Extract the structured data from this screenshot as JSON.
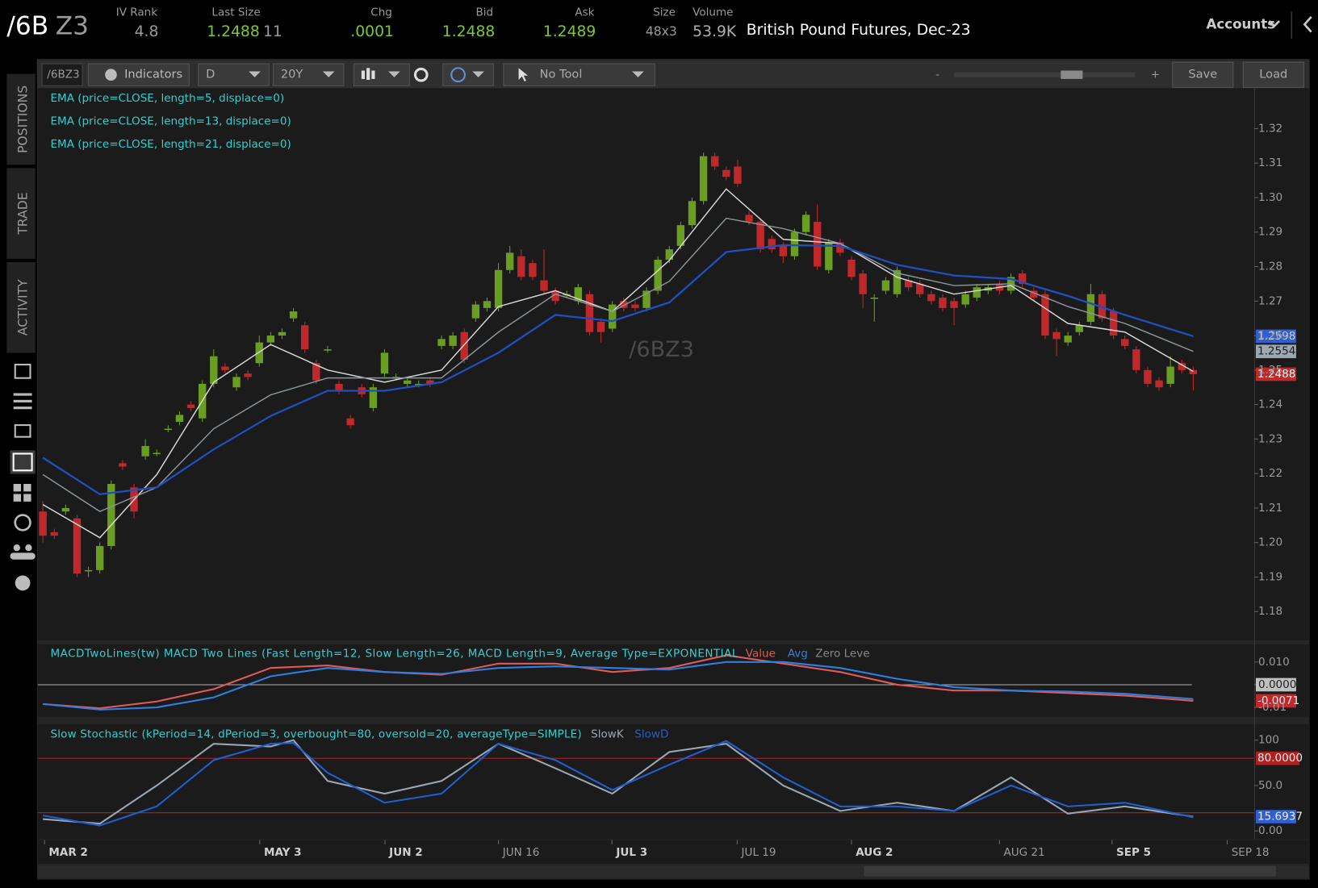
{
  "header": {
    "symbol": {
      "root": "/6B",
      "contract": "Z3"
    },
    "iv_rank": {
      "label": "IV Rank",
      "value": "4.8"
    },
    "last_size": {
      "label": "Last Size",
      "value": "1.2488",
      "size": "11"
    },
    "chg": {
      "label": "Chg",
      "value": ".0001"
    },
    "bid": {
      "label": "Bid",
      "value": "1.2488"
    },
    "ask": {
      "label": "Ask",
      "value": "1.2489"
    },
    "size": {
      "label": "Size",
      "value": "48x3"
    },
    "volume": {
      "label": "Volume",
      "value": "53.9K"
    },
    "description": "British Pound Futures, Dec-23",
    "accounts": "Accounts"
  },
  "toolbar": {
    "symbol": "/6BZ3",
    "indicators": "Indicators",
    "aggregation": "D",
    "period": "20Y",
    "tool": "No Tool",
    "zoom_out": "-",
    "zoom_in": "+",
    "save": "Save",
    "load": "Load"
  },
  "sidebar": {
    "tabs": [
      "POSITIONS",
      "TRADE",
      "ACTIVITY"
    ]
  },
  "time_axis": {
    "labels": [
      "MAR 2",
      "MAY 3",
      "JUN 2",
      "JUN 16",
      "JUL 3",
      "JUL 19",
      "AUG 2",
      "AUG 21",
      "SEP 5",
      "SEP 18"
    ]
  },
  "chart_data": [
    {
      "type": "candlestick",
      "watermark": "/6BZ3",
      "up_color": "#6a9e22",
      "down_color": "#c0292b",
      "ylim": [
        1.1717,
        1.3317
      ],
      "yticks": [
        1.32,
        1.31,
        {
          "value": 1.3,
          "label": "1.30"
        },
        1.29,
        1.28,
        1.27,
        1.26,
        1.25,
        1.24,
        1.23,
        1.22,
        1.21,
        {
          "value": 1.2,
          "label": "1.20"
        },
        1.19,
        1.18
      ],
      "open": [
        1.209,
        1.203,
        1.209,
        1.207,
        1.192,
        1.192,
        1.199,
        1.223,
        1.216,
        1.225,
        1.226,
        1.233,
        1.235,
        1.24,
        1.236,
        1.246,
        1.251,
        1.245,
        1.249,
        1.252,
        1.258,
        1.26,
        1.265,
        1.263,
        1.252,
        1.256,
        1.246,
        1.236,
        1.245,
        1.239,
        1.249,
        1.248,
        1.246,
        1.246,
        1.247,
        1.257,
        1.257,
        1.261,
        1.265,
        1.268,
        1.268,
        1.279,
        1.283,
        1.281,
        1.276,
        1.273,
        1.272,
        1.27,
        1.272,
        1.264,
        1.262,
        1.27,
        1.269,
        1.268,
        1.273,
        1.282,
        1.286,
        1.292,
        1.299,
        1.312,
        1.308,
        1.309,
        1.295,
        1.293,
        1.288,
        1.286,
        1.283,
        1.29,
        1.293,
        1.279,
        1.287,
        1.282,
        1.278,
        1.271,
        1.273,
        1.272,
        1.276,
        1.275,
        1.272,
        1.271,
        1.27,
        1.269,
        1.271,
        1.273,
        1.275,
        1.273,
        1.278,
        1.273,
        1.272,
        1.261,
        1.258,
        1.261,
        1.264,
        1.272,
        1.267,
        1.259,
        1.256,
        1.25,
        1.247,
        1.246,
        1.252,
        1.25
      ],
      "high": [
        1.212,
        1.204,
        1.211,
        1.208,
        1.193,
        1.2,
        1.218,
        1.224,
        1.217,
        1.23,
        1.227,
        1.234,
        1.238,
        1.241,
        1.247,
        1.256,
        1.252,
        1.249,
        1.25,
        1.26,
        1.261,
        1.262,
        1.268,
        1.264,
        1.253,
        1.257,
        1.247,
        1.237,
        1.246,
        1.246,
        1.256,
        1.249,
        1.248,
        1.247,
        1.248,
        1.26,
        1.261,
        1.262,
        1.27,
        1.271,
        1.281,
        1.286,
        1.285,
        1.282,
        1.285,
        1.274,
        1.273,
        1.275,
        1.273,
        1.265,
        1.27,
        1.271,
        1.27,
        1.274,
        1.283,
        1.286,
        1.293,
        1.3,
        1.313,
        1.313,
        1.309,
        1.311,
        1.296,
        1.294,
        1.289,
        1.287,
        1.291,
        1.296,
        1.298,
        1.288,
        1.288,
        1.283,
        1.279,
        1.272,
        1.277,
        1.28,
        1.277,
        1.276,
        1.273,
        1.272,
        1.271,
        1.273,
        1.275,
        1.275,
        1.276,
        1.278,
        1.279,
        1.274,
        1.273,
        1.262,
        1.261,
        1.264,
        1.275,
        1.273,
        1.268,
        1.26,
        1.257,
        1.251,
        1.248,
        1.254,
        1.253,
        1.251
      ],
      "low": [
        1.2,
        1.201,
        1.208,
        1.19,
        1.19,
        1.191,
        1.198,
        1.221,
        1.207,
        1.224,
        1.225,
        1.232,
        1.234,
        1.238,
        1.235,
        1.245,
        1.249,
        1.244,
        1.247,
        1.251,
        1.257,
        1.259,
        1.264,
        1.255,
        1.246,
        1.255,
        1.243,
        1.233,
        1.242,
        1.238,
        1.248,
        1.247,
        1.245,
        1.245,
        1.245,
        1.256,
        1.256,
        1.252,
        1.264,
        1.267,
        1.267,
        1.278,
        1.276,
        1.276,
        1.272,
        1.269,
        1.271,
        1.269,
        1.26,
        1.258,
        1.261,
        1.267,
        1.267,
        1.267,
        1.272,
        1.281,
        1.285,
        1.291,
        1.298,
        1.308,
        1.305,
        1.303,
        1.292,
        1.284,
        1.284,
        1.281,
        1.282,
        1.289,
        1.279,
        1.278,
        1.283,
        1.276,
        1.268,
        1.264,
        1.272,
        1.271,
        1.273,
        1.271,
        1.269,
        1.267,
        1.263,
        1.268,
        1.27,
        1.272,
        1.272,
        1.272,
        1.274,
        1.27,
        1.259,
        1.254,
        1.257,
        1.26,
        1.263,
        1.264,
        1.259,
        1.256,
        1.249,
        1.245,
        1.244,
        1.245,
        1.249,
        1.244
      ],
      "close": [
        1.202,
        1.202,
        1.21,
        1.191,
        1.192,
        1.199,
        1.217,
        1.222,
        1.209,
        1.228,
        1.226,
        1.233,
        1.237,
        1.239,
        1.246,
        1.254,
        1.25,
        1.248,
        1.248,
        1.258,
        1.26,
        1.261,
        1.267,
        1.256,
        1.247,
        1.256,
        1.244,
        1.234,
        1.243,
        1.245,
        1.255,
        1.248,
        1.247,
        1.246,
        1.246,
        1.259,
        1.26,
        1.253,
        1.269,
        1.27,
        1.279,
        1.284,
        1.277,
        1.277,
        1.273,
        1.27,
        1.272,
        1.274,
        1.261,
        1.261,
        1.269,
        1.268,
        1.268,
        1.273,
        1.282,
        1.285,
        1.292,
        1.299,
        1.312,
        1.309,
        1.306,
        1.304,
        1.293,
        1.285,
        1.285,
        1.283,
        1.29,
        1.295,
        1.28,
        1.287,
        1.284,
        1.277,
        1.272,
        1.271,
        1.276,
        1.279,
        1.274,
        1.272,
        1.27,
        1.268,
        1.268,
        1.272,
        1.274,
        1.274,
        1.273,
        1.277,
        1.275,
        1.271,
        1.26,
        1.259,
        1.26,
        1.263,
        1.272,
        1.265,
        1.26,
        1.257,
        1.25,
        1.246,
        1.245,
        1.251,
        1.25,
        1.2488
      ],
      "series": [
        {
          "name": "EMA (price=CLOSE, length=5, displace=0)",
          "color": "#d8d8d8",
          "x": [
            0,
            5,
            10,
            15,
            20,
            25,
            30,
            35,
            40,
            45,
            50,
            55,
            60,
            65,
            70,
            75,
            80,
            85,
            90,
            95,
            101
          ],
          "values": [
            1.211,
            1.2014,
            1.2197,
            1.2465,
            1.2574,
            1.25,
            1.2465,
            1.25,
            1.2684,
            1.273,
            1.267,
            1.2818,
            1.3025,
            1.2879,
            1.2867,
            1.2769,
            1.272,
            1.2745,
            1.2635,
            1.261,
            1.2496
          ]
        },
        {
          "name": "EMA (price=CLOSE, length=13, displace=0)",
          "color": "#8a959c",
          "x": [
            0,
            5,
            10,
            15,
            20,
            25,
            30,
            35,
            40,
            45,
            50,
            55,
            60,
            65,
            70,
            75,
            80,
            85,
            90,
            95,
            101
          ],
          "values": [
            1.2197,
            1.209,
            1.216,
            1.233,
            1.2428,
            1.2477,
            1.2477,
            1.2477,
            1.261,
            1.272,
            1.267,
            1.2757,
            1.294,
            1.291,
            1.2867,
            1.2781,
            1.2745,
            1.275,
            1.2684,
            1.2635,
            1.2554
          ]
        },
        {
          "name": "EMA (price=CLOSE, length=21, displace=0)",
          "color": "#1f4fc0",
          "x": [
            0,
            5,
            10,
            15,
            20,
            25,
            30,
            35,
            40,
            45,
            50,
            55,
            60,
            65,
            70,
            75,
            80,
            85,
            90,
            95,
            101
          ],
          "values": [
            1.2246,
            1.214,
            1.216,
            1.227,
            1.2367,
            1.244,
            1.244,
            1.2465,
            1.255,
            1.266,
            1.2642,
            1.2696,
            1.2842,
            1.2862,
            1.286,
            1.2805,
            1.2774,
            1.2764,
            1.2715,
            1.266,
            1.2598
          ]
        }
      ]
    },
    {
      "type": "line",
      "title": "MACDTwoLines(tw) MACD Two Lines (Fast Length=12, Slow Length=26, MACD Length=9, Average Type=EXPONENTIAL",
      "ylim": [
        -0.0137,
        0.0178
      ],
      "yticks": [
        {
          "value": 0.01,
          "label": "0.010"
        },
        {
          "value": 0,
          "label": "0.0000"
        },
        {
          "value": -0.01,
          "label": "-0.01"
        }
      ],
      "zero_level": {
        "name": "Zero Leve",
        "value": 0,
        "color": "#b0b0b0"
      },
      "series": [
        {
          "name": "Value",
          "color": "#e05a5a",
          "x": [
            0,
            5,
            10,
            15,
            20,
            25,
            30,
            35,
            40,
            45,
            50,
            55,
            60,
            65,
            70,
            75,
            80,
            85,
            90,
            95,
            101
          ],
          "values": [
            -0.0085,
            -0.0104,
            -0.0074,
            -0.0019,
            0.0074,
            0.0085,
            0.0056,
            0.0044,
            0.0093,
            0.0093,
            0.0056,
            0.0074,
            0.013,
            0.0093,
            0.0056,
            0,
            -0.0026,
            -0.0026,
            -0.0037,
            -0.0048,
            -0.0071
          ]
        },
        {
          "name": "Avg",
          "color": "#2f7fe0",
          "x": [
            0,
            5,
            10,
            15,
            20,
            25,
            30,
            35,
            40,
            45,
            50,
            55,
            60,
            65,
            70,
            75,
            80,
            85,
            90,
            95,
            101
          ],
          "values": [
            -0.0085,
            -0.011,
            -0.01,
            -0.0056,
            0.0037,
            0.0074,
            0.0056,
            0.0048,
            0.0074,
            0.0081,
            0.0074,
            0.0067,
            0.01,
            0.01,
            0.0074,
            0.0026,
            -0.0011,
            -0.0026,
            -0.003,
            -0.004,
            -0.0063
          ]
        }
      ]
    },
    {
      "type": "line",
      "title": "Slow Stochastic (kPeriod=14, dPeriod=3, overbought=80, oversold=20, averageType=SIMPLE)",
      "ylim": [
        -8.3,
        117.6
      ],
      "yticks": [
        100,
        {
          "value": 50,
          "label": "50.0"
        },
        {
          "value": 0,
          "label": "0.00"
        }
      ],
      "overbought": {
        "value": 80,
        "label": "80.0000"
      },
      "oversold": 20,
      "level_color": "#b02020",
      "series": [
        {
          "name": "SlowK",
          "color": "#9aa6b2",
          "x": [
            0,
            5,
            10,
            15,
            20,
            22,
            25,
            30,
            35,
            40,
            45,
            50,
            55,
            60,
            65,
            70,
            75,
            80,
            85,
            90,
            95,
            101
          ],
          "values": [
            13,
            8,
            50,
            96,
            93,
            100,
            55,
            41,
            55,
            96,
            69,
            41,
            87,
            96,
            50,
            22,
            31,
            22,
            59,
            19,
            27,
            15.6937
          ]
        },
        {
          "name": "SlowD",
          "color": "#1f5fd0",
          "x": [
            0,
            5,
            10,
            15,
            20,
            22,
            25,
            30,
            35,
            40,
            45,
            50,
            55,
            60,
            65,
            70,
            75,
            80,
            85,
            90,
            95,
            101
          ],
          "values": [
            17,
            6,
            27,
            78,
            96,
            97,
            64,
            31,
            41,
            96,
            78,
            45,
            73,
            99,
            59,
            27,
            27,
            22,
            50,
            27,
            31,
            15
          ]
        }
      ]
    }
  ]
}
